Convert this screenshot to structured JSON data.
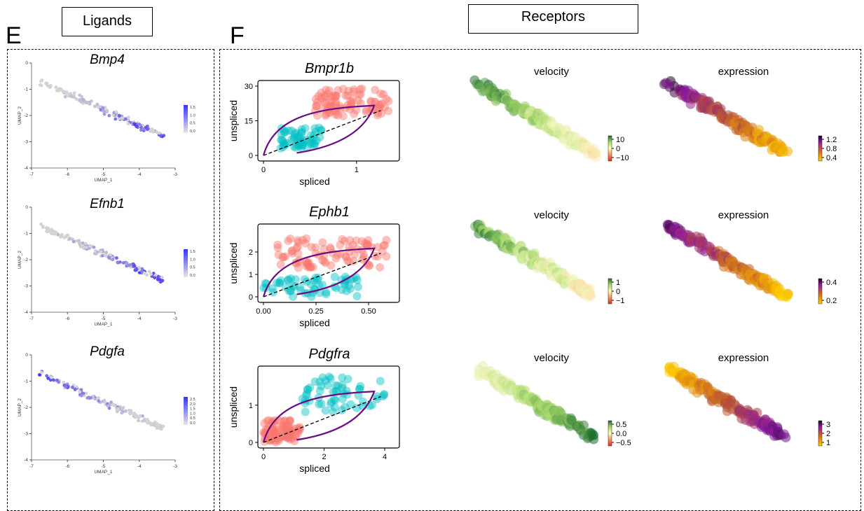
{
  "panel_e": {
    "letter": "E",
    "header": "Ligands"
  },
  "panel_f": {
    "letter": "F",
    "header": "Receptors"
  },
  "ligands": [
    {
      "gene": "Bmp4",
      "xlabel": "UMAP_1",
      "ylabel": "UMAP_2",
      "legend_ticks": [
        "1.5",
        "1.0",
        "0.5",
        "0.0"
      ],
      "high_region": "right"
    },
    {
      "gene": "Efnb1",
      "xlabel": "UMAP_1",
      "ylabel": "UMAP_2",
      "legend_ticks": [
        "1.5",
        "1.0",
        "0.5",
        "0.0"
      ],
      "high_region": "right"
    },
    {
      "gene": "Pdgfa",
      "xlabel": "UMAP_1",
      "ylabel": "UMAP_2",
      "legend_ticks": [
        "2.5",
        "2.0",
        "1.5",
        "1.0",
        "0.5",
        "0.0"
      ],
      "high_region": "left"
    }
  ],
  "receptors": [
    {
      "gene": "Bmpr1b",
      "xlabel": "spliced",
      "ylabel": "unspliced",
      "velocity_title": "velocity",
      "expression_title": "expression",
      "velocity_ticks": [
        "10",
        "0",
        "−10"
      ],
      "expression_ticks": [
        "1.2",
        "0.8",
        "0.4"
      ]
    },
    {
      "gene": "Ephb1",
      "xlabel": "spliced",
      "ylabel": "unspliced",
      "velocity_title": "velocity",
      "expression_title": "expression",
      "velocity_ticks": [
        "1",
        "0",
        "−1"
      ],
      "expression_ticks": [
        "0.4",
        "0.2"
      ]
    },
    {
      "gene": "Pdgfra",
      "xlabel": "spliced",
      "ylabel": "unspliced",
      "velocity_title": "velocity",
      "expression_title": "expression",
      "velocity_ticks": [
        "0.5",
        "0.0",
        "−0.5"
      ],
      "expression_ticks": [
        "3",
        "2",
        "1"
      ]
    }
  ],
  "chart_data": [
    {
      "type": "scatter",
      "title": "Bmp4",
      "xlabel": "UMAP_1",
      "ylabel": "UMAP_2",
      "xlim": [
        -7,
        -3
      ],
      "ylim": [
        -4,
        0
      ],
      "x_ticks": [
        "-7",
        "-6",
        "-5",
        "-4",
        "-3"
      ],
      "y_ticks": [
        "0",
        "-1",
        "-2",
        "-3",
        "-4"
      ],
      "colorscale": [
        "#d3d3d3",
        "#3333ff"
      ],
      "legend_ticks": [
        "1.5",
        "1.0",
        "0.5",
        "0.0"
      ]
    },
    {
      "type": "scatter",
      "title": "Efnb1",
      "xlabel": "UMAP_1",
      "ylabel": "UMAP_2",
      "xlim": [
        -7,
        -3
      ],
      "ylim": [
        -4,
        0
      ],
      "x_ticks": [
        "-7",
        "-6",
        "-5",
        "-4",
        "-3"
      ],
      "y_ticks": [
        "0",
        "-1",
        "-2",
        "-3",
        "-4"
      ],
      "colorscale": [
        "#d3d3d3",
        "#3333ff"
      ],
      "legend_ticks": [
        "1.5",
        "1.0",
        "0.5",
        "0.0"
      ]
    },
    {
      "type": "scatter",
      "title": "Pdgfa",
      "xlabel": "UMAP_1",
      "ylabel": "UMAP_2",
      "xlim": [
        -7,
        -3
      ],
      "ylim": [
        -4,
        0
      ],
      "x_ticks": [
        "-7",
        "-6",
        "-5",
        "-4",
        "-3"
      ],
      "y_ticks": [
        "0",
        "-1",
        "-2",
        "-3",
        "-4"
      ],
      "colorscale": [
        "#d3d3d3",
        "#3333ff"
      ],
      "legend_ticks": [
        "2.5",
        "2.0",
        "1.5",
        "1.0",
        "0.5",
        "0.0"
      ]
    },
    {
      "type": "scatter",
      "title": "Bmpr1b",
      "xlabel": "spliced",
      "ylabel": "unspliced",
      "xlim": [
        0,
        1.4
      ],
      "ylim": [
        0,
        30
      ],
      "x_ticks": [
        0,
        1
      ],
      "y_ticks": [
        0,
        15,
        30
      ],
      "colors": {
        "high": "#f8766d",
        "low": "#00bfc4",
        "fit": "#6a0d83"
      }
    },
    {
      "type": "scatter",
      "title": "Ephb1",
      "xlabel": "spliced",
      "ylabel": "unspliced",
      "xlim": [
        0,
        0.62
      ],
      "ylim": [
        0,
        3
      ],
      "x_ticks": [
        0.0,
        0.25,
        0.5
      ],
      "x_tick_labels": [
        "0.00",
        "0.25",
        "0.50"
      ],
      "y_ticks": [
        0,
        1,
        2
      ],
      "colors": {
        "high": "#f8766d",
        "low": "#00bfc4",
        "fit": "#6a0d83"
      }
    },
    {
      "type": "scatter",
      "title": "Pdgfra",
      "xlabel": "spliced",
      "ylabel": "unspliced",
      "xlim": [
        0,
        4.3
      ],
      "ylim": [
        0,
        1.9
      ],
      "x_ticks": [
        0,
        2,
        4
      ],
      "y_ticks": [
        0,
        1
      ],
      "colors": {
        "high": "#f8766d",
        "low": "#00bfc4",
        "fit": "#6a0d83"
      }
    }
  ]
}
